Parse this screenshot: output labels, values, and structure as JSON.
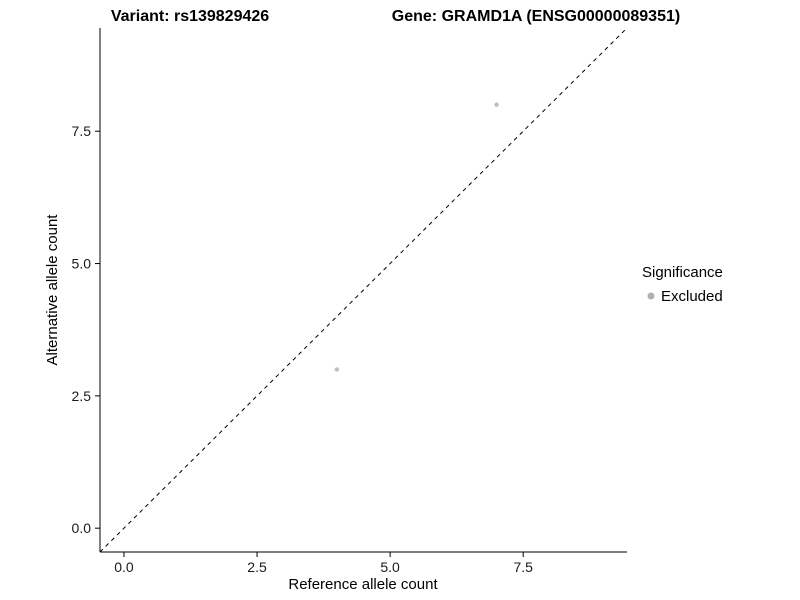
{
  "chart_data": {
    "type": "scatter",
    "title_left": "Variant: rs139829426",
    "title_right": "Gene: GRAMD1A (ENSG00000089351)",
    "xlabel": "Reference allele count",
    "ylabel": "Alternative allele count",
    "xlim": [
      -0.45,
      9.45
    ],
    "ylim": [
      -0.45,
      9.45
    ],
    "grid": false,
    "x_ticks": {
      "values": [
        0,
        2.5,
        5,
        7.5
      ],
      "labels": [
        "0.0",
        "2.5",
        "5.0",
        "7.5"
      ]
    },
    "y_ticks": {
      "values": [
        0,
        2.5,
        5,
        7.5
      ],
      "labels": [
        "0.0",
        "2.5",
        "5.0",
        "7.5"
      ]
    },
    "series": [
      {
        "name": "Excluded",
        "color": "#bebebe",
        "points": [
          {
            "x": 4,
            "y": 3
          },
          {
            "x": 7,
            "y": 8
          }
        ]
      }
    ],
    "reference_line": {
      "type": "diagonal",
      "slope": 1,
      "intercept": 0,
      "style": "dashed",
      "color": "#000000"
    },
    "legend": {
      "title": "Significance",
      "position": "right",
      "entries": [
        {
          "label": "Excluded",
          "color": "#b0b0b0"
        }
      ]
    },
    "colors": {
      "axis": "#000000",
      "background": "#ffffff"
    }
  }
}
